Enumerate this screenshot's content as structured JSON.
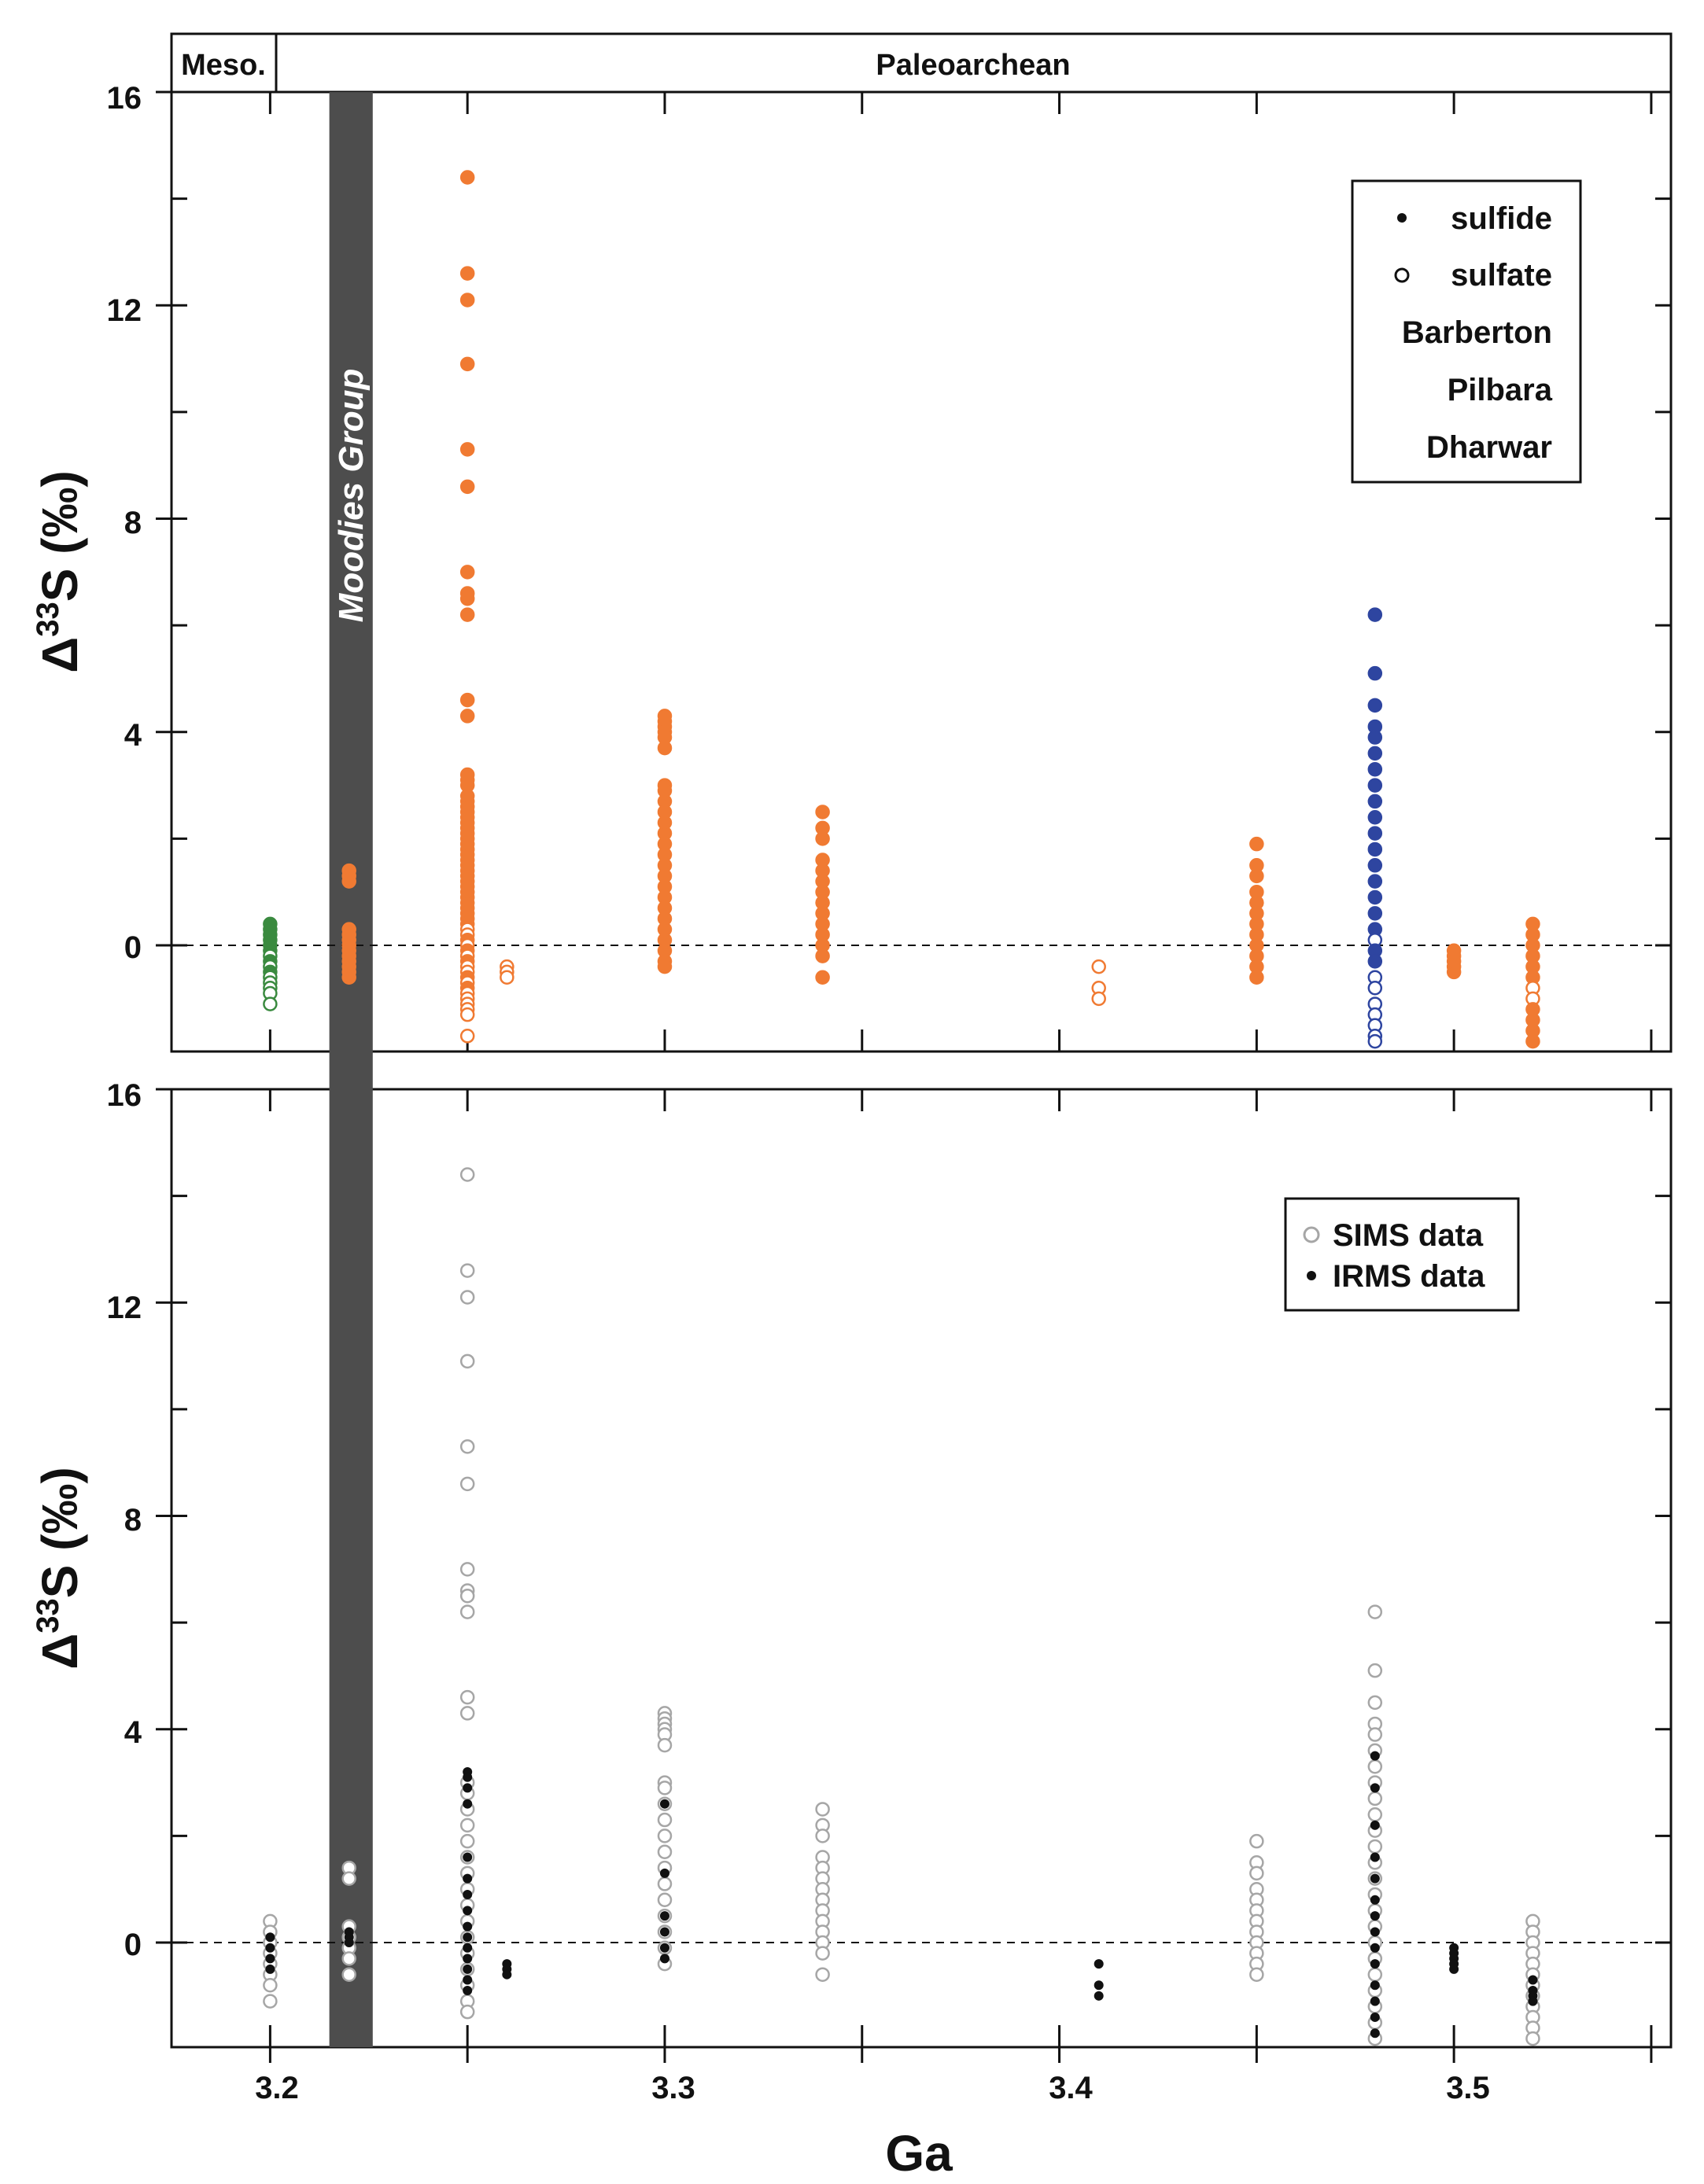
{
  "colors": {
    "barberton": "#f07a32",
    "pilbara": "#2e45a0",
    "dharwar": "#3a8a3f",
    "sulfide": "#111111",
    "sims": "#a6a6a6",
    "irms": "#111111",
    "band": "#4d4d4d",
    "axis": "#111111"
  },
  "chart_data": [
    {
      "type": "scatter",
      "panel": "top",
      "ylabel_prefix": "Δ",
      "ylabel_sup": "33",
      "ylabel_suffix": "S (‰)",
      "xlim": [
        3.175,
        3.555
      ],
      "ylim": [
        -1.9,
        16
      ],
      "yticks": [
        0,
        4,
        8,
        12,
        16
      ],
      "ytick_labels": [
        "0",
        "4",
        "8",
        "12",
        "16"
      ],
      "xticks": [
        3.2,
        3.25,
        3.3,
        3.35,
        3.4,
        3.45,
        3.5,
        3.55
      ],
      "zero_line": 0,
      "eras": [
        {
          "label": "Meso.",
          "from": 3.175,
          "to": 3.2
        },
        {
          "label": "Paleoarchean",
          "from": 3.2,
          "to": 3.555
        }
      ],
      "band": {
        "label": "Moodies Group",
        "from": 3.215,
        "to": 3.226
      },
      "legend": [
        {
          "label": "sulfide",
          "marker": "filled-small",
          "color": "#111111"
        },
        {
          "label": "sulfate",
          "marker": "open",
          "color": "#111111"
        },
        {
          "label": "Barberton",
          "marker": "none",
          "color": "#f07a32"
        },
        {
          "label": "Pilbara",
          "marker": "none",
          "color": "#2e45a0"
        },
        {
          "label": "Dharwar",
          "marker": "none",
          "color": "#3a8a3f"
        }
      ],
      "series": [
        {
          "name": "Dharwar",
          "x": 3.2,
          "color": "#3a8a3f",
          "values": [
            0.4,
            0.3,
            0.2,
            0.1,
            0.0,
            -0.1,
            -0.2,
            -0.3,
            -0.4,
            -0.5,
            -0.6,
            -0.7,
            -0.8,
            -0.9,
            -1.1
          ],
          "filled": [
            true,
            true,
            true,
            true,
            true,
            true,
            false,
            true,
            false,
            true,
            false,
            false,
            false,
            false,
            false
          ]
        },
        {
          "name": "Barberton",
          "x": 3.22,
          "color": "#f07a32",
          "values": [
            1.4,
            1.3,
            1.2,
            0.3,
            0.2,
            0.1,
            0.0,
            -0.1,
            -0.2,
            -0.3,
            -0.4,
            -0.5,
            -0.6
          ],
          "filled": [
            true,
            true,
            true,
            true,
            true,
            true,
            true,
            true,
            true,
            true,
            true,
            true,
            true
          ]
        },
        {
          "name": "Barberton",
          "x": 3.25,
          "color": "#f07a32",
          "values": [
            14.4,
            12.6,
            12.1,
            10.9,
            9.3,
            8.6,
            7.0,
            6.6,
            6.5,
            6.2,
            4.6,
            4.3,
            3.2,
            3.1,
            3.0,
            2.8,
            2.7,
            2.6,
            2.5,
            2.4,
            2.3,
            2.2,
            2.1,
            2.0,
            1.9,
            1.8,
            1.7,
            1.6,
            1.5,
            1.4,
            1.3,
            1.2,
            1.1,
            1.0,
            0.9,
            0.8,
            0.7,
            0.6,
            0.5,
            0.4,
            0.3,
            0.2,
            0.1,
            0.0,
            -0.1,
            -0.2,
            -0.3,
            -0.4,
            -0.5,
            -0.6,
            -0.7,
            -0.8,
            -0.9,
            -1.0,
            -1.1,
            -1.2,
            -1.3,
            -1.7
          ],
          "filled": [
            true,
            true,
            true,
            true,
            true,
            true,
            true,
            true,
            true,
            true,
            true,
            true,
            true,
            true,
            true,
            true,
            true,
            true,
            true,
            true,
            true,
            true,
            true,
            true,
            true,
            true,
            true,
            true,
            true,
            true,
            true,
            true,
            true,
            true,
            true,
            true,
            true,
            true,
            true,
            true,
            false,
            false,
            true,
            false,
            true,
            false,
            true,
            false,
            false,
            true,
            false,
            true,
            false,
            false,
            false,
            false,
            false,
            false
          ]
        },
        {
          "name": "Barberton",
          "x": 3.26,
          "color": "#f07a32",
          "values": [
            -0.4,
            -0.5,
            -0.6
          ],
          "filled": [
            false,
            false,
            false
          ]
        },
        {
          "name": "Barberton",
          "x": 3.3,
          "color": "#f07a32",
          "values": [
            4.3,
            4.2,
            4.1,
            4.0,
            3.9,
            3.7,
            3.0,
            2.9,
            2.7,
            2.5,
            2.3,
            2.1,
            1.9,
            1.7,
            1.5,
            1.3,
            1.1,
            0.9,
            0.7,
            0.5,
            0.3,
            0.1,
            -0.1,
            -0.3,
            -0.4
          ],
          "filled": [
            true,
            true,
            true,
            true,
            true,
            true,
            true,
            true,
            true,
            true,
            true,
            true,
            true,
            true,
            true,
            true,
            true,
            true,
            true,
            true,
            true,
            true,
            true,
            true,
            true
          ]
        },
        {
          "name": "Barberton",
          "x": 3.34,
          "color": "#f07a32",
          "values": [
            2.5,
            2.2,
            2.0,
            1.6,
            1.4,
            1.2,
            1.0,
            0.8,
            0.6,
            0.4,
            0.2,
            0.0,
            -0.2,
            -0.6
          ],
          "filled": [
            true,
            true,
            true,
            true,
            true,
            true,
            true,
            true,
            true,
            true,
            true,
            true,
            true,
            true
          ]
        },
        {
          "name": "Barberton",
          "x": 3.41,
          "color": "#f07a32",
          "values": [
            -0.4,
            -0.8,
            -1.0
          ],
          "filled": [
            false,
            false,
            false
          ]
        },
        {
          "name": "Barberton",
          "x": 3.45,
          "color": "#f07a32",
          "values": [
            1.9,
            1.5,
            1.3,
            1.0,
            0.8,
            0.6,
            0.4,
            0.2,
            0.0,
            -0.2,
            -0.4,
            -0.6
          ],
          "filled": [
            true,
            true,
            true,
            true,
            true,
            true,
            true,
            true,
            true,
            true,
            true,
            true
          ]
        },
        {
          "name": "Pilbara",
          "x": 3.48,
          "color": "#2e45a0",
          "values": [
            6.2,
            5.1,
            4.5,
            4.1,
            3.9,
            3.6,
            3.3,
            3.0,
            2.7,
            2.4,
            2.1,
            1.8,
            1.5,
            1.2,
            0.9,
            0.6,
            0.3,
            0.1,
            -0.1,
            -0.3,
            -0.6,
            -0.8,
            -1.1,
            -1.3,
            -1.5,
            -1.7,
            -1.8
          ],
          "filled": [
            true,
            true,
            true,
            true,
            true,
            true,
            true,
            true,
            true,
            true,
            true,
            true,
            true,
            true,
            true,
            true,
            true,
            false,
            true,
            true,
            false,
            false,
            false,
            false,
            false,
            false,
            false
          ]
        },
        {
          "name": "Barberton",
          "x": 3.5,
          "color": "#f07a32",
          "values": [
            -0.1,
            -0.2,
            -0.3,
            -0.4,
            -0.5
          ],
          "filled": [
            true,
            true,
            true,
            true,
            true
          ]
        },
        {
          "name": "Barberton",
          "x": 3.52,
          "color": "#f07a32",
          "values": [
            0.4,
            0.2,
            0.0,
            -0.2,
            -0.4,
            -0.6,
            -0.8,
            -1.0,
            -1.2,
            -1.4,
            -1.6,
            -1.8
          ],
          "filled": [
            true,
            true,
            true,
            true,
            true,
            true,
            false,
            false,
            true,
            true,
            true,
            true
          ]
        }
      ]
    },
    {
      "type": "scatter",
      "panel": "bottom",
      "ylabel_prefix": "Δ",
      "ylabel_sup": "33",
      "ylabel_suffix": "S (‰)",
      "xlabel": "Ga",
      "xlim": [
        3.175,
        3.555
      ],
      "ylim": [
        -1.9,
        16
      ],
      "yticks": [
        0,
        4,
        8,
        12,
        16
      ],
      "ytick_labels": [
        "0",
        "4",
        "8",
        "12",
        "16"
      ],
      "xticks": [
        3.2,
        3.25,
        3.3,
        3.35,
        3.4,
        3.45,
        3.5,
        3.55
      ],
      "xtick_labels": [
        {
          "value": 3.2,
          "label": "3.2"
        },
        {
          "value": 3.3,
          "label": "3.3"
        },
        {
          "value": 3.4,
          "label": "3.4"
        },
        {
          "value": 3.5,
          "label": "3.5"
        }
      ],
      "zero_line": 0,
      "band": {
        "from": 3.215,
        "to": 3.226
      },
      "legend": [
        {
          "label": "SIMS data",
          "marker": "open",
          "color": "#a6a6a6"
        },
        {
          "label": "IRMS data",
          "marker": "filled-small",
          "color": "#111111"
        }
      ],
      "series": [
        {
          "name": "SIMS data",
          "color": "#a6a6a6",
          "filled": false,
          "points": [
            {
              "x": 3.2,
              "values": [
                0.4,
                0.2,
                0.0,
                -0.2,
                -0.4,
                -0.6,
                -0.8,
                -1.1
              ]
            },
            {
              "x": 3.22,
              "values": [
                1.4,
                1.2,
                0.3,
                0.1,
                -0.1,
                -0.3,
                -0.6
              ]
            },
            {
              "x": 3.25,
              "values": [
                14.4,
                12.6,
                12.1,
                10.9,
                9.3,
                8.6,
                7.0,
                6.6,
                6.5,
                6.2,
                4.6,
                4.3,
                3.0,
                2.8,
                2.5,
                2.2,
                1.9,
                1.6,
                1.3,
                1.0,
                0.7,
                0.4,
                0.1,
                -0.2,
                -0.5,
                -0.8,
                -1.1,
                -1.3
              ]
            },
            {
              "x": 3.3,
              "values": [
                4.3,
                4.2,
                4.1,
                4.0,
                3.9,
                3.7,
                3.0,
                2.9,
                2.6,
                2.3,
                2.0,
                1.7,
                1.4,
                1.1,
                0.8,
                0.5,
                0.2,
                -0.1,
                -0.4
              ]
            },
            {
              "x": 3.34,
              "values": [
                2.5,
                2.2,
                2.0,
                1.6,
                1.4,
                1.2,
                1.0,
                0.8,
                0.6,
                0.4,
                0.2,
                0.0,
                -0.2,
                -0.6
              ]
            },
            {
              "x": 3.45,
              "values": [
                1.9,
                1.5,
                1.3,
                1.0,
                0.8,
                0.6,
                0.4,
                0.2,
                0.0,
                -0.2,
                -0.4,
                -0.6
              ]
            },
            {
              "x": 3.48,
              "values": [
                6.2,
                5.1,
                4.5,
                4.1,
                3.9,
                3.6,
                3.3,
                3.0,
                2.7,
                2.4,
                2.1,
                1.8,
                1.5,
                1.2,
                0.9,
                0.6,
                0.3,
                0.0,
                -0.3,
                -0.6,
                -0.9,
                -1.2,
                -1.5,
                -1.8
              ]
            },
            {
              "x": 3.52,
              "values": [
                0.4,
                0.2,
                0.0,
                -0.2,
                -0.4,
                -0.6,
                -0.8,
                -1.0,
                -1.2,
                -1.4,
                -1.6,
                -1.8
              ]
            }
          ]
        },
        {
          "name": "IRMS data",
          "color": "#111111",
          "filled": true,
          "points": [
            {
              "x": 3.2,
              "values": [
                0.1,
                -0.1,
                -0.3,
                -0.5
              ]
            },
            {
              "x": 3.22,
              "values": [
                0.2,
                0.1,
                0.0
              ]
            },
            {
              "x": 3.25,
              "values": [
                3.2,
                3.1,
                2.9,
                2.6,
                1.6,
                1.2,
                0.9,
                0.6,
                0.3,
                0.1,
                -0.1,
                -0.3,
                -0.5,
                -0.7,
                -0.9
              ]
            },
            {
              "x": 3.26,
              "values": [
                -0.4,
                -0.5,
                -0.6
              ]
            },
            {
              "x": 3.3,
              "values": [
                2.6,
                1.3,
                0.5,
                0.2,
                -0.1,
                -0.3
              ]
            },
            {
              "x": 3.41,
              "values": [
                -0.4,
                -0.8,
                -1.0
              ]
            },
            {
              "x": 3.48,
              "values": [
                3.5,
                2.9,
                2.2,
                1.6,
                1.2,
                0.8,
                0.5,
                0.2,
                -0.1,
                -0.4,
                -0.8,
                -1.1,
                -1.4,
                -1.7
              ]
            },
            {
              "x": 3.5,
              "values": [
                -0.1,
                -0.2,
                -0.3,
                -0.4,
                -0.5
              ]
            },
            {
              "x": 3.52,
              "values": [
                -0.7,
                -0.9,
                -1.0,
                -1.1
              ]
            }
          ]
        }
      ]
    }
  ]
}
